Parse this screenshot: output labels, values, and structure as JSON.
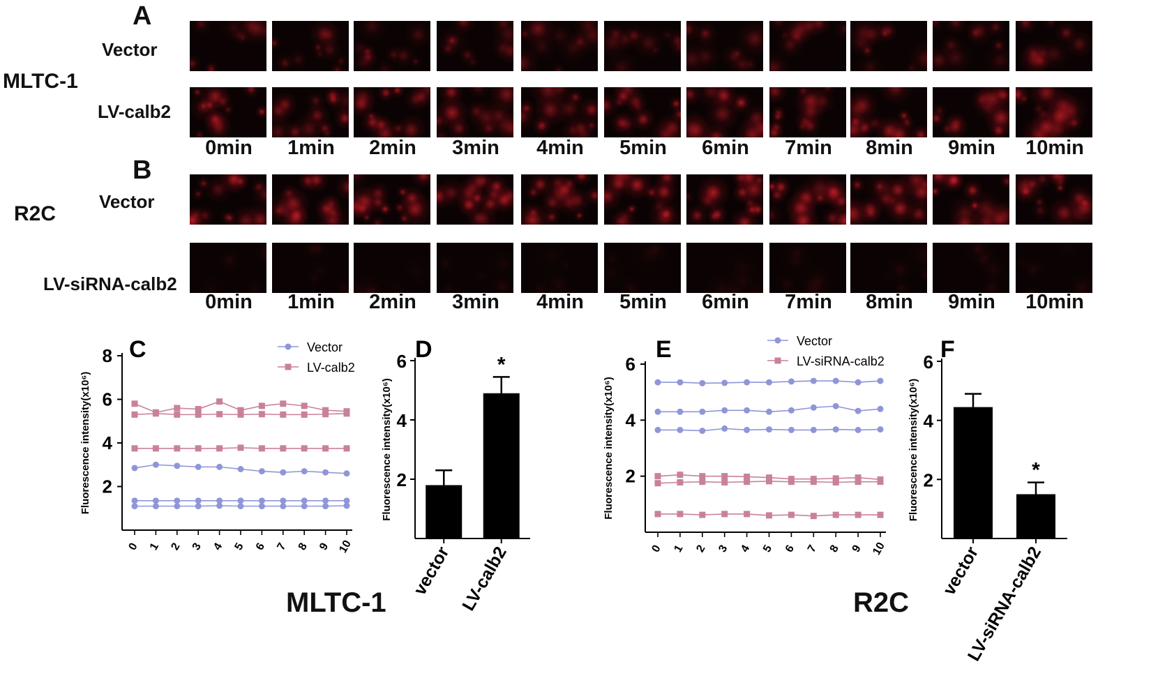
{
  "panels": {
    "A": {
      "letter": "A",
      "cell_line": "MLTC-1",
      "rows": [
        "Vector",
        "LV-calb2"
      ]
    },
    "B": {
      "letter": "B",
      "cell_line": "R2C",
      "rows": [
        "Vector",
        "LV-siRNA-calb2"
      ]
    }
  },
  "times": [
    "0min",
    "1min",
    "2min",
    "3min",
    "4min",
    "5min",
    "6min",
    "7min",
    "8min",
    "9min",
    "10min"
  ],
  "bottom_labels": {
    "left": "MLTC-1",
    "right": "R2C"
  },
  "colors": {
    "vector": "#8f96d8",
    "lv": "#c9819b",
    "bar": "#000000",
    "microscopy_red": "#c0182a"
  },
  "chart_data": [
    {
      "id": "C",
      "type": "line",
      "letter": "C",
      "ylabel": "Fluorescence intensity(x10⁶)",
      "ylim": [
        0,
        8
      ],
      "yticks": [
        2,
        4,
        6,
        8
      ],
      "x": [
        0,
        1,
        2,
        3,
        4,
        5,
        6,
        7,
        8,
        9,
        10
      ],
      "legend": "top-right",
      "series": [
        {
          "name": "Vector",
          "group": "vector",
          "values": [
            2.85,
            3.0,
            2.95,
            2.9,
            2.9,
            2.8,
            2.7,
            2.65,
            2.7,
            2.65,
            2.6
          ]
        },
        {
          "group": "vector",
          "values": [
            1.35,
            1.35,
            1.35,
            1.35,
            1.35,
            1.35,
            1.35,
            1.35,
            1.35,
            1.35,
            1.35
          ]
        },
        {
          "group": "vector",
          "values": [
            1.1,
            1.1,
            1.1,
            1.1,
            1.12,
            1.1,
            1.1,
            1.1,
            1.1,
            1.1,
            1.12
          ]
        },
        {
          "name": "LV-calb2",
          "group": "lv",
          "values": [
            5.8,
            5.4,
            5.6,
            5.55,
            5.9,
            5.5,
            5.7,
            5.8,
            5.7,
            5.5,
            5.45
          ]
        },
        {
          "group": "lv",
          "values": [
            5.3,
            5.35,
            5.3,
            5.3,
            5.32,
            5.3,
            5.32,
            5.3,
            5.3,
            5.32,
            5.35
          ]
        },
        {
          "group": "lv",
          "values": [
            3.75,
            3.75,
            3.75,
            3.75,
            3.75,
            3.78,
            3.75,
            3.75,
            3.75,
            3.75,
            3.75
          ]
        }
      ]
    },
    {
      "id": "D",
      "type": "bar",
      "letter": "D",
      "ylabel": "Fluorescence intensity(x10⁶)",
      "ylim": [
        0,
        6
      ],
      "yticks": [
        2,
        4,
        6
      ],
      "categories": [
        "vector",
        "LV-calb2"
      ],
      "values": [
        1.8,
        4.9
      ],
      "errors": [
        0.5,
        0.55
      ],
      "annotations": [
        "",
        "*"
      ]
    },
    {
      "id": "E",
      "type": "line",
      "letter": "E",
      "ylabel": "Fluorescence intensity(x10⁶)",
      "ylim": [
        0,
        6
      ],
      "yticks": [
        2,
        4,
        6
      ],
      "x": [
        0,
        1,
        2,
        3,
        4,
        5,
        6,
        7,
        8,
        9,
        10
      ],
      "legend": "top-right",
      "series": [
        {
          "name": "Vector",
          "group": "vector",
          "values": [
            5.35,
            5.35,
            5.32,
            5.33,
            5.35,
            5.35,
            5.38,
            5.4,
            5.4,
            5.35,
            5.4
          ]
        },
        {
          "group": "vector",
          "values": [
            4.3,
            4.3,
            4.3,
            4.35,
            4.35,
            4.3,
            4.35,
            4.45,
            4.5,
            4.33,
            4.4
          ]
        },
        {
          "group": "vector",
          "values": [
            3.65,
            3.65,
            3.62,
            3.7,
            3.65,
            3.67,
            3.65,
            3.65,
            3.67,
            3.65,
            3.67
          ]
        },
        {
          "name": "LV-siRNA-calb2",
          "group": "lv",
          "values": [
            2.0,
            2.05,
            2.0,
            2.0,
            1.98,
            1.95,
            1.9,
            1.9,
            1.92,
            1.95,
            1.88
          ]
        },
        {
          "group": "lv",
          "values": [
            1.75,
            1.78,
            1.8,
            1.78,
            1.8,
            1.82,
            1.8,
            1.8,
            1.78,
            1.8,
            1.8
          ]
        },
        {
          "group": "lv",
          "values": [
            0.65,
            0.65,
            0.62,
            0.65,
            0.65,
            0.6,
            0.62,
            0.58,
            0.62,
            0.62,
            0.62
          ]
        }
      ]
    },
    {
      "id": "F",
      "type": "bar",
      "letter": "F",
      "ylabel": "Fluorescence intensity(x10⁶)",
      "ylim": [
        0,
        6
      ],
      "yticks": [
        2,
        4,
        6
      ],
      "categories": [
        "vector",
        "LV-siRNA-calb2"
      ],
      "values": [
        4.45,
        1.5
      ],
      "errors": [
        0.45,
        0.4
      ],
      "annotations": [
        "",
        "*"
      ]
    }
  ]
}
